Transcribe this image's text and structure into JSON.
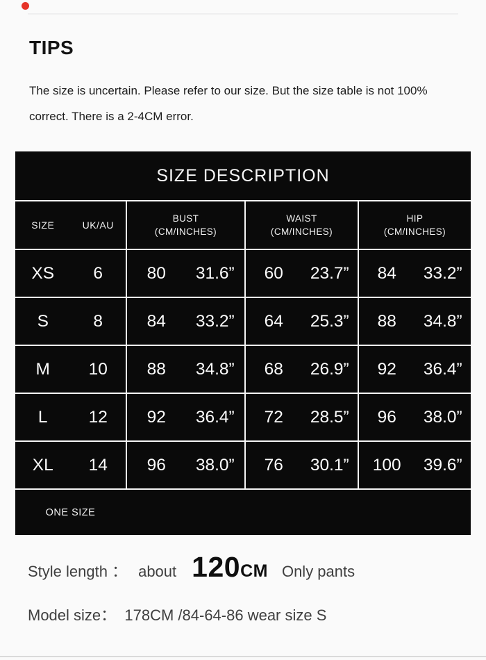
{
  "tips": {
    "title": "TIPS",
    "body": "The size is uncertain. Please refer to our size. But the size table is not 100% correct. There is a 2-4CM error."
  },
  "size_table": {
    "title": "SIZE DESCRIPTION",
    "headers": {
      "size": "SIZE",
      "ukau": "UK/AU",
      "bust": "BUST",
      "waist": "WAIST",
      "hip": "HIP",
      "unit": "(CM/INCHES)"
    },
    "rows": [
      {
        "size": "XS",
        "uk": "6",
        "bust_cm": "80",
        "bust_in": "31.6”",
        "waist_cm": "60",
        "waist_in": "23.7”",
        "hip_cm": "84",
        "hip_in": "33.2”"
      },
      {
        "size": "S",
        "uk": "8",
        "bust_cm": "84",
        "bust_in": "33.2”",
        "waist_cm": "64",
        "waist_in": "25.3”",
        "hip_cm": "88",
        "hip_in": "34.8”"
      },
      {
        "size": "M",
        "uk": "10",
        "bust_cm": "88",
        "bust_in": "34.8”",
        "waist_cm": "68",
        "waist_in": "26.9”",
        "hip_cm": "92",
        "hip_in": "36.4”"
      },
      {
        "size": "L",
        "uk": "12",
        "bust_cm": "92",
        "bust_in": "36.4”",
        "waist_cm": "72",
        "waist_in": "28.5”",
        "hip_cm": "96",
        "hip_in": "38.0”"
      },
      {
        "size": "XL",
        "uk": "14",
        "bust_cm": "96",
        "bust_in": "38.0”",
        "waist_cm": "76",
        "waist_in": "30.1”",
        "hip_cm": "100",
        "hip_in": "39.6”"
      }
    ],
    "one_size": "ONE SIZE"
  },
  "footer": {
    "style_length_label": "Style length ：",
    "about": "about",
    "length_value": "120",
    "length_unit": "CM",
    "only_pants": "Only pants",
    "model_size": "Model size：  178CM /84-64-86 wear size S"
  },
  "colors": {
    "accent_red": "#e63328",
    "page_bg": "#fafafa",
    "table_bg": "#0a0a0a",
    "table_text": "#fafafa",
    "divider": "#f5f5f5"
  }
}
